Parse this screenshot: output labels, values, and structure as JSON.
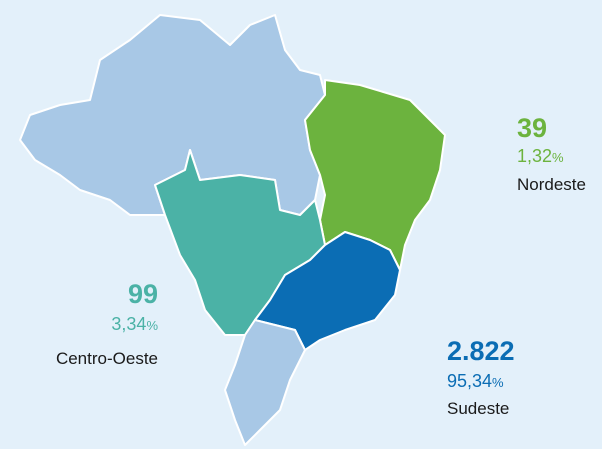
{
  "regions": [
    {
      "name": "Nordeste",
      "value": "39",
      "share": "1,32%",
      "color": "#6cb33e"
    },
    {
      "name": "Centro-Oeste",
      "value": "99",
      "share": "3,34%",
      "color": "#4bb2a6"
    },
    {
      "name": "Sudeste",
      "value": "2.822",
      "share": "95,34%",
      "color": "#0b6db4"
    }
  ]
}
